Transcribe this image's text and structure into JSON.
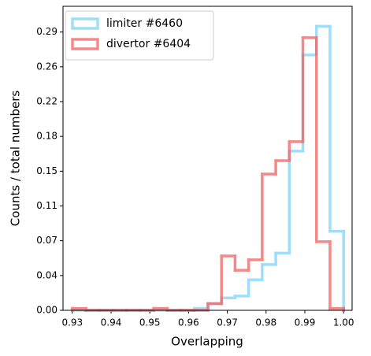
{
  "chart_data": {
    "type": "histogram",
    "xlabel": "Overlapping",
    "ylabel": "Counts / total numbers",
    "bins": [
      0.93,
      0.9335,
      0.937,
      0.9405,
      0.944,
      0.9475,
      0.951,
      0.9545,
      0.958,
      0.9615,
      0.965,
      0.9685,
      0.972,
      0.9755,
      0.979,
      0.9825,
      0.986,
      0.9895,
      0.993,
      0.9965,
      1.0
    ],
    "series": [
      {
        "name": "limiter #6460",
        "color": "#7fd3f7",
        "values": [
          0,
          0,
          0,
          0,
          0,
          0,
          0,
          0,
          0,
          0.002,
          0.007,
          0.013,
          0.015,
          0.032,
          0.048,
          0.06,
          0.167,
          0.268,
          0.298,
          0.083
        ]
      },
      {
        "name": "divertor #6404",
        "color": "#f06262",
        "values": [
          0.002,
          0,
          0,
          0,
          0,
          0,
          0.002,
          0,
          0,
          0,
          0.007,
          0.057,
          0.042,
          0.053,
          0.143,
          0.157,
          0.177,
          0.286,
          0.072,
          0.002
        ]
      }
    ],
    "xlim": [
      0.9276,
      1.0022
    ],
    "xticks": [
      0.93,
      0.94,
      0.95,
      0.96,
      0.97,
      0.98,
      0.99,
      {
        "value": 1,
        "label": "1.00"
      }
    ],
    "ylim": [
      0,
      0.319
    ],
    "yticks": [
      {
        "value": 0,
        "label": "0.00"
      },
      {
        "value": 0.0365,
        "label": "0.04"
      },
      {
        "value": 0.073,
        "label": "0.07"
      },
      {
        "value": 0.1095,
        "label": "0.11"
      },
      {
        "value": 0.146,
        "label": "0.15"
      },
      {
        "value": 0.1825,
        "label": "0.18"
      },
      {
        "value": 0.219,
        "label": "0.22"
      },
      {
        "value": 0.2555,
        "label": "0.26"
      },
      {
        "value": 0.292,
        "label": "0.29"
      }
    ],
    "legend": "upper left"
  }
}
